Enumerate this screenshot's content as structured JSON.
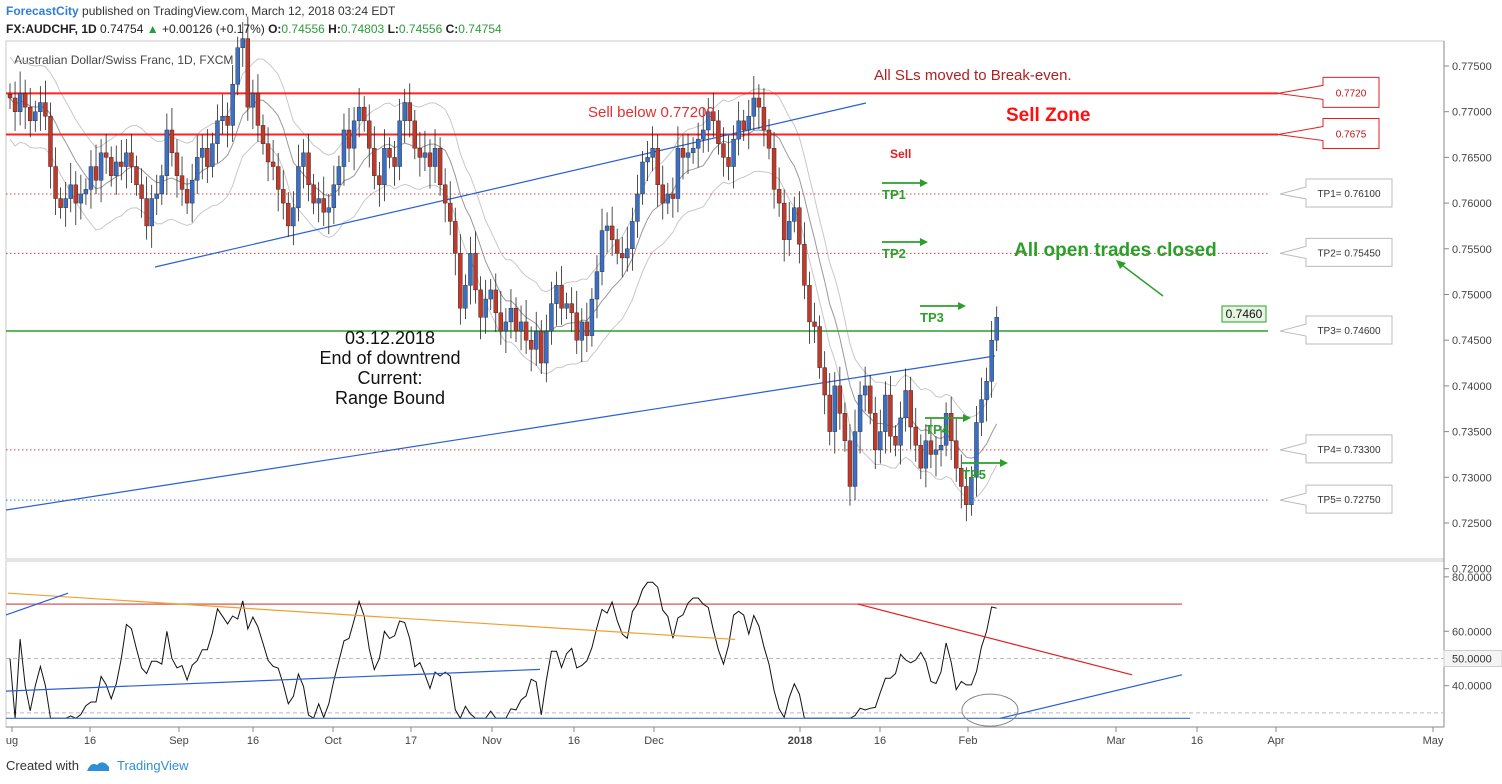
{
  "header": {
    "brand": "ForecastCity",
    "published": "published on TradingView.com, March 12, 2018 03:24 EDT",
    "symbol": "FX:AUDCHF, 1D",
    "last": "0.74754",
    "change": "+0.00126 (+0.17%)",
    "o_label": "O:",
    "o": "0.74556",
    "h_label": "H:",
    "h": "0.74803",
    "l_label": "L:",
    "l": "0.74556",
    "c_label": "C:",
    "c": "0.74754"
  },
  "footer": {
    "created_with": "Created with",
    "tradingview": "TradingView"
  },
  "chart_data": {
    "type": "candlestick",
    "title": "Australian Dollar/Swiss Franc, 1D, FXCM",
    "colors": {
      "bull": "#3a6fc4",
      "bear": "#c0392b",
      "resistance": "#ff2020",
      "support": "#2aa02a",
      "trendline": "#2a5fd8",
      "annotation_green": "#2aa02a"
    },
    "price_axis": {
      "min": 0.715,
      "max": 0.779,
      "ticks": [
        "0.77500",
        "0.77000",
        "0.76500",
        "0.76000",
        "0.75500",
        "0.75000",
        "0.74500",
        "0.74000",
        "0.73500",
        "0.73000",
        "0.72500",
        "0.72000"
      ]
    },
    "time_axis": {
      "labels": [
        "ug",
        "16",
        "Sep",
        "16",
        "Oct",
        "17",
        "Nov",
        "16",
        "Dec",
        "2018",
        "16",
        "Feb",
        "Mar",
        "16",
        "Apr",
        "May"
      ]
    },
    "levels": [
      {
        "name": "sell_zone_top",
        "price": 0.772,
        "color": "#ff2020",
        "style": "solid",
        "label": "0.7720"
      },
      {
        "name": "sell_zone_bottom",
        "price": 0.7675,
        "color": "#ff2020",
        "style": "solid",
        "label": "0.7675"
      },
      {
        "name": "tp1",
        "price": 0.761,
        "color": "#e04040",
        "style": "dotted",
        "label": "TP1= 0.76100"
      },
      {
        "name": "tp2",
        "price": 0.7545,
        "color": "#e04040",
        "style": "dotted",
        "label": "TP2= 0.75450"
      },
      {
        "name": "tp3",
        "price": 0.746,
        "color": "#2aa02a",
        "style": "solid",
        "label": "TP3= 0.74600"
      },
      {
        "name": "tp4",
        "price": 0.733,
        "color": "#e04040",
        "style": "dotted",
        "label": "TP4= 0.73300"
      },
      {
        "name": "tp5",
        "price": 0.7275,
        "color": "#3a6fc4",
        "style": "dotted",
        "label": "TP5= 0.72750"
      }
    ],
    "price_tag": "0.7460",
    "annotations": {
      "sls_moved": "All SLs moved to Break-even.",
      "sell_below": "Sell below 0.77200",
      "sell_zone": "Sell Zone",
      "sell": "Sell",
      "all_closed": "All open trades closed",
      "tp_arrows": [
        "TP1",
        "TP2",
        "TP3",
        "TP4",
        "TP5"
      ],
      "note_lines": [
        "03.12.2018",
        "End of downtrend",
        "Current:",
        "Range Bound"
      ]
    },
    "candles_close": [
      0.7715,
      0.77,
      0.772,
      0.7705,
      0.769,
      0.77,
      0.771,
      0.7695,
      0.764,
      0.7605,
      0.7595,
      0.7605,
      0.762,
      0.76,
      0.761,
      0.7615,
      0.764,
      0.7625,
      0.7655,
      0.765,
      0.763,
      0.7645,
      0.764,
      0.7655,
      0.764,
      0.762,
      0.7605,
      0.7575,
      0.7605,
      0.761,
      0.763,
      0.768,
      0.7655,
      0.763,
      0.7615,
      0.76,
      0.7625,
      0.765,
      0.766,
      0.764,
      0.7665,
      0.769,
      0.7695,
      0.7685,
      0.773,
      0.777,
      0.778,
      0.7705,
      0.772,
      0.7685,
      0.7665,
      0.7645,
      0.764,
      0.7615,
      0.76,
      0.7575,
      0.7595,
      0.764,
      0.7655,
      0.762,
      0.76,
      0.7605,
      0.759,
      0.7595,
      0.762,
      0.764,
      0.768,
      0.766,
      0.769,
      0.7705,
      0.769,
      0.766,
      0.763,
      0.762,
      0.766,
      0.765,
      0.764,
      0.769,
      0.771,
      0.769,
      0.766,
      0.765,
      0.7655,
      0.764,
      0.766,
      0.762,
      0.76,
      0.758,
      0.7545,
      0.7485,
      0.751,
      0.7545,
      0.7505,
      0.7475,
      0.7495,
      0.7505,
      0.748,
      0.746,
      0.747,
      0.7485,
      0.746,
      0.747,
      0.745,
      0.744,
      0.746,
      0.7425,
      0.746,
      0.749,
      0.751,
      0.7485,
      0.749,
      0.748,
      0.745,
      0.747,
      0.7455,
      0.7495,
      0.7525,
      0.757,
      0.7575,
      0.756,
      0.7545,
      0.754,
      0.755,
      0.758,
      0.761,
      0.7645,
      0.765,
      0.766,
      0.762,
      0.76,
      0.761,
      0.7605,
      0.766,
      0.765,
      0.7655,
      0.766,
      0.767,
      0.768,
      0.77,
      0.769,
      0.7665,
      0.765,
      0.764,
      0.767,
      0.769,
      0.768,
      0.7695,
      0.7715,
      0.7705,
      0.768,
      0.766,
      0.7615,
      0.76,
      0.756,
      0.758,
      0.7595,
      0.7555,
      0.751,
      0.747,
      0.7465,
      0.742,
      0.739,
      0.735,
      0.74,
      0.737,
      0.734,
      0.729,
      0.735,
      0.739,
      0.74,
      0.737,
      0.733,
      0.735,
      0.739,
      0.7345,
      0.7335,
      0.7365,
      0.7395,
      0.7355,
      0.7335,
      0.731,
      0.734,
      0.7325,
      0.733,
      0.7335,
      0.737,
      0.734,
      0.731,
      0.729,
      0.727,
      0.73,
      0.736,
      0.7385,
      0.7405,
      0.745,
      0.7475
    ],
    "rsi": {
      "ticks": [
        "80.0000",
        "60.0000",
        "50.0000",
        "40.0000"
      ],
      "current_tag": "50.0000",
      "range": [
        24,
        84
      ]
    }
  }
}
